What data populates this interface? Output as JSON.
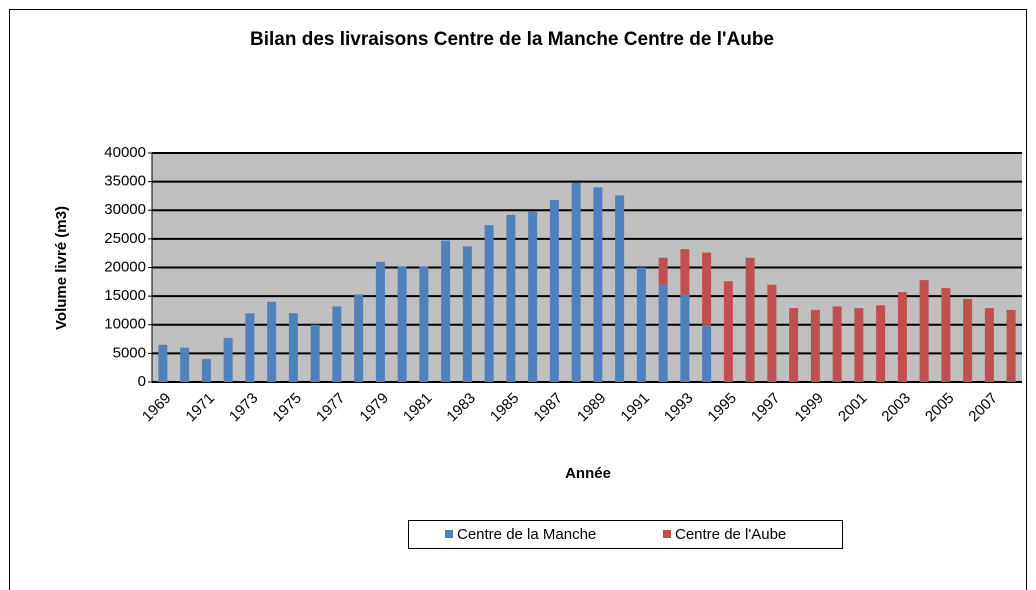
{
  "chart_data": {
    "type": "stacked_bar",
    "title": "Bilan des livraisons Centre de la Manche Centre de l'Aube",
    "x_label": "Année",
    "y_label": "Volume livré (m3)",
    "categories": [
      "1969",
      null,
      "1971",
      null,
      "1973",
      null,
      "1975",
      null,
      "1977",
      null,
      "1979",
      null,
      "1981",
      null,
      "1983",
      null,
      "1985",
      null,
      "1987",
      null,
      "1989",
      null,
      "1991",
      null,
      "1993",
      null,
      "1995",
      null,
      "1997",
      null,
      "1999",
      null,
      "2001",
      null,
      "2003",
      null,
      "2005",
      null,
      "2007",
      null
    ],
    "series": [
      {
        "name": "Centre de la Manche",
        "color": "#4f81bd",
        "values": [
          6500,
          6000,
          4000,
          7700,
          12000,
          14000,
          12000,
          10000,
          13200,
          15300,
          21000,
          20200,
          20200,
          24700,
          23700,
          27400,
          29200,
          29800,
          31800,
          34800,
          34000,
          32600,
          20000,
          17000,
          15300,
          10000,
          null,
          null,
          null,
          null,
          null,
          null,
          null,
          null,
          null,
          null,
          null,
          null,
          null,
          null
        ]
      },
      {
        "name": "Centre de l'Aube",
        "color": "#c0504d",
        "values": [
          null,
          null,
          null,
          null,
          null,
          null,
          null,
          null,
          null,
          null,
          null,
          null,
          null,
          null,
          null,
          null,
          null,
          null,
          null,
          null,
          null,
          null,
          null,
          4700,
          7900,
          12600,
          17600,
          21700,
          17000,
          12900,
          12600,
          13200,
          12900,
          13400,
          15700,
          17800,
          16400,
          14500,
          12900,
          12600
        ]
      }
    ],
    "ylim": [
      0,
      40000
    ],
    "yticks": [
      0,
      5000,
      10000,
      15000,
      20000,
      25000,
      30000,
      35000,
      40000
    ],
    "grid": true,
    "legend": "bottom"
  }
}
